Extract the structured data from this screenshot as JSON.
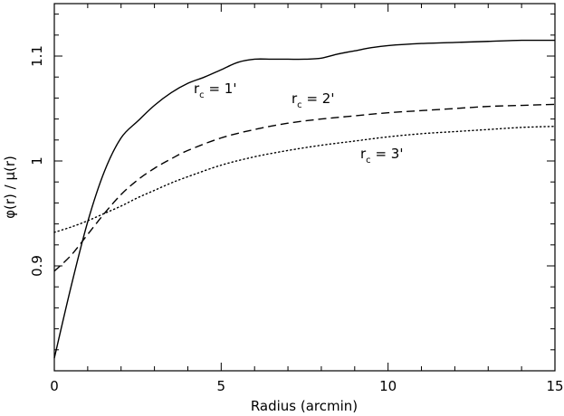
{
  "chart_data": {
    "type": "line",
    "xlabel": "Radius (arcmin)",
    "ylabel": "φ(r) / μ(r)",
    "xlim": [
      0,
      15
    ],
    "ylim": [
      0.8,
      1.15
    ],
    "xticks": [
      0,
      5,
      10,
      15
    ],
    "xtick_labels": [
      "0",
      "5",
      "10",
      "15"
    ],
    "yticks": [
      0.9,
      1.0,
      1.1
    ],
    "ytick_labels": [
      "0.9",
      "1",
      "1.1"
    ],
    "grid": false,
    "legend": "none",
    "series": [
      {
        "label_main": "r",
        "label_sub": "c",
        "label_tail": " = 1'",
        "style": "solid",
        "color": "#000000",
        "x": [
          0,
          0.5,
          1,
          1.5,
          2,
          2.5,
          3,
          3.5,
          4,
          4.5,
          5,
          5.5,
          6,
          6.5,
          7,
          7.5,
          8,
          8.5,
          9,
          9.5,
          10,
          11,
          12,
          13,
          14,
          15
        ],
        "y": [
          0.812,
          0.88,
          0.942,
          0.99,
          1.022,
          1.038,
          1.053,
          1.065,
          1.074,
          1.08,
          1.087,
          1.094,
          1.097,
          1.097,
          1.097,
          1.097,
          1.098,
          1.102,
          1.105,
          1.108,
          1.11,
          1.112,
          1.113,
          1.114,
          1.115,
          1.115
        ]
      },
      {
        "label_main": "r",
        "label_sub": "c",
        "label_tail": " = 2'",
        "style": "dashed",
        "color": "#000000",
        "x": [
          0,
          0.5,
          1,
          1.5,
          2,
          2.5,
          3,
          3.5,
          4,
          5,
          6,
          7,
          8,
          9,
          10,
          11,
          12,
          13,
          14,
          15
        ],
        "y": [
          0.895,
          0.91,
          0.93,
          0.95,
          0.968,
          0.982,
          0.993,
          1.002,
          1.01,
          1.022,
          1.03,
          1.036,
          1.04,
          1.043,
          1.046,
          1.048,
          1.05,
          1.052,
          1.053,
          1.054
        ]
      },
      {
        "label_main": "r",
        "label_sub": "c",
        "label_tail": " = 3'",
        "style": "dotted",
        "color": "#000000",
        "x": [
          0,
          0.5,
          1,
          1.5,
          2,
          2.5,
          3,
          3.5,
          4,
          5,
          6,
          7,
          8,
          9,
          10,
          11,
          12,
          13,
          14,
          15
        ],
        "y": [
          0.932,
          0.937,
          0.943,
          0.95,
          0.957,
          0.965,
          0.972,
          0.979,
          0.985,
          0.996,
          1.004,
          1.01,
          1.015,
          1.019,
          1.023,
          1.026,
          1.028,
          1.03,
          1.032,
          1.033
        ]
      }
    ]
  }
}
